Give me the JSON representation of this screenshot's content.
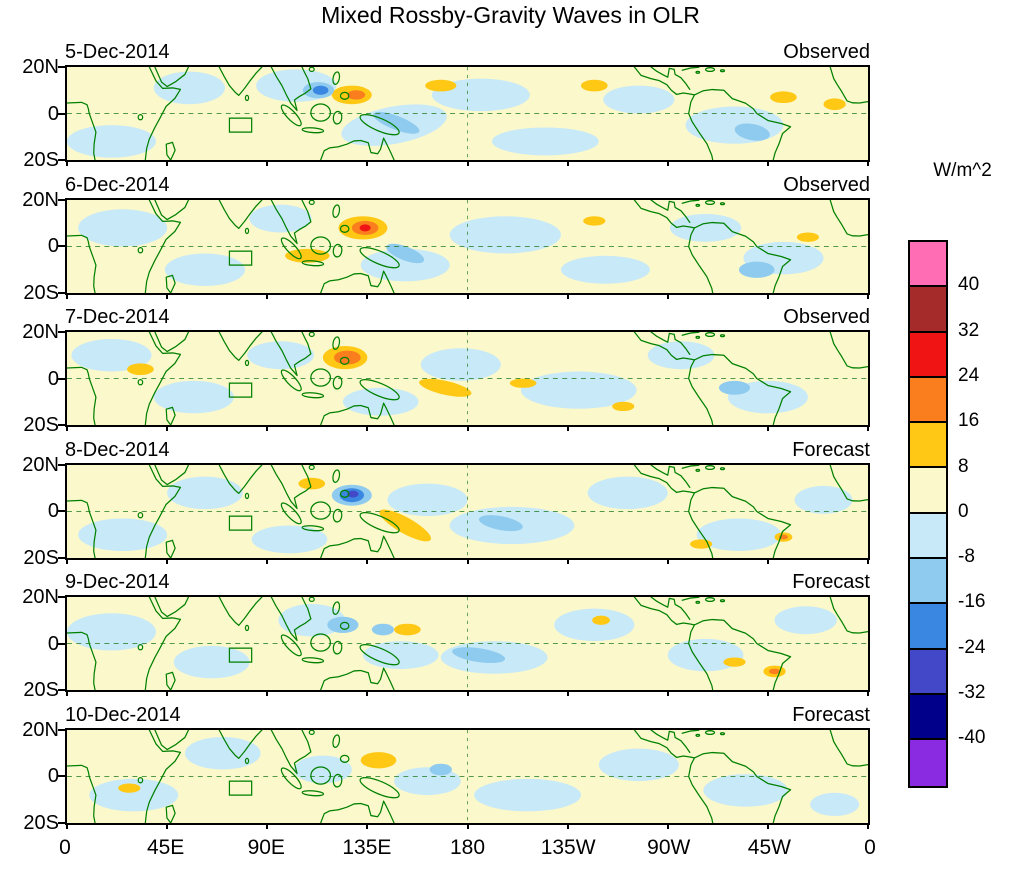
{
  "title": "Mixed Rossby-Gravity Waves in OLR",
  "chart_data": {
    "type": "heatmap",
    "title": "Mixed Rossby-Gravity Waves in OLR",
    "geo_domain": {
      "lon_range": [
        0,
        360
      ],
      "lat_range": [
        -20,
        20
      ]
    },
    "x_axis": {
      "tick_lons": [
        0,
        45,
        90,
        135,
        180,
        225,
        270,
        315,
        360
      ],
      "tick_labels": [
        "0",
        "45E",
        "90E",
        "135E",
        "180",
        "135W",
        "90W",
        "45W",
        "0"
      ]
    },
    "y_axis": {
      "tick_lats": [
        20,
        0,
        -20
      ],
      "tick_labels": [
        "20N",
        "0",
        "20S"
      ]
    },
    "colorbar": {
      "unit": "W/m^2",
      "tick_labels": [
        "40",
        "32",
        "24",
        "16",
        "8",
        "0",
        "-8",
        "-16",
        "-24",
        "-32",
        "-40"
      ],
      "cell_colors_top_to_bottom": [
        "#FF6EB4",
        "#A52A2A",
        "#F01414",
        "#FA7D1E",
        "#FFC814",
        "#FBF8CC",
        "#C8E9F7",
        "#8FCBEF",
        "#3A87E2",
        "#4348C8",
        "#00008B",
        "#8A2BE2"
      ]
    },
    "level_colors": {
      "1": "#FBF8CC",
      "2": "#FFC814",
      "3": "#FA7D1E",
      "4": "#F01414",
      "5": "#A52A2A",
      "6": "#FF6EB4",
      "-1": "#C8E9F7",
      "-2": "#8FCBEF",
      "-3": "#3A87E2",
      "-4": "#4348C8",
      "-5": "#00008B",
      "-6": "#8A2BE2"
    },
    "region_box": {
      "lon": [
        73,
        83
      ],
      "lat": [
        -8,
        -2
      ]
    },
    "anomaly_format": "[lon_deg_east, lat_deg_north, rx_deg, ry_deg, rotation_deg, level_index]",
    "panels": [
      {
        "date": "5-Dec-2014",
        "source": "Observed",
        "anomalies": [
          [
            20,
            -12,
            20,
            7,
            0,
            -1
          ],
          [
            55,
            11,
            16,
            7,
            0,
            -1
          ],
          [
            103,
            12,
            18,
            7,
            0,
            -1
          ],
          [
            147,
            -5,
            24,
            8,
            -10,
            -1
          ],
          [
            186,
            8,
            22,
            7,
            0,
            -1
          ],
          [
            215,
            -12,
            24,
            6,
            0,
            -1
          ],
          [
            257,
            6,
            16,
            6,
            0,
            -1
          ],
          [
            300,
            -5,
            22,
            8,
            0,
            -1
          ],
          [
            168,
            12,
            7,
            2.5,
            0,
            2
          ],
          [
            237,
            12,
            6,
            2.5,
            0,
            2
          ],
          [
            322,
            7,
            6,
            2.5,
            0,
            2
          ],
          [
            345,
            4,
            5,
            2.5,
            0,
            2
          ],
          [
            128,
            8,
            9,
            4,
            0,
            2
          ],
          [
            130,
            8,
            4,
            2,
            0,
            3
          ],
          [
            113,
            10,
            7,
            3.5,
            0,
            -2
          ],
          [
            114,
            10,
            3.5,
            2,
            0,
            -3
          ],
          [
            148,
            -4,
            11,
            3,
            20,
            -2
          ],
          [
            308,
            -8,
            8,
            3.5,
            10,
            -2
          ]
        ]
      },
      {
        "date": "6-Dec-2014",
        "source": "Observed",
        "anomalies": [
          [
            25,
            8,
            20,
            8,
            0,
            -1
          ],
          [
            62,
            -10,
            18,
            7,
            0,
            -1
          ],
          [
            96,
            12,
            14,
            6,
            0,
            -1
          ],
          [
            152,
            -8,
            20,
            7,
            0,
            -1
          ],
          [
            197,
            5,
            25,
            8,
            0,
            -1
          ],
          [
            242,
            -10,
            20,
            6,
            0,
            -1
          ],
          [
            287,
            8,
            16,
            6,
            0,
            -1
          ],
          [
            322,
            -5,
            18,
            7,
            0,
            -1
          ],
          [
            108,
            -4,
            10,
            3,
            0,
            2
          ],
          [
            237,
            11,
            5,
            2,
            0,
            2
          ],
          [
            333,
            4,
            5,
            2,
            0,
            2
          ],
          [
            133,
            8,
            11,
            5,
            0,
            2
          ],
          [
            134,
            8,
            6,
            3,
            0,
            3
          ],
          [
            134,
            8,
            2.5,
            1.5,
            0,
            4
          ],
          [
            152,
            -3,
            9,
            3,
            20,
            -2
          ],
          [
            310,
            -10,
            8,
            3.5,
            0,
            -2
          ]
        ]
      },
      {
        "date": "7-Dec-2014",
        "source": "Observed",
        "anomalies": [
          [
            20,
            10,
            18,
            7,
            0,
            -1
          ],
          [
            57,
            -8,
            18,
            7,
            0,
            -1
          ],
          [
            96,
            10,
            15,
            6,
            0,
            -1
          ],
          [
            141,
            -10,
            17,
            6,
            0,
            -1
          ],
          [
            177,
            6,
            18,
            7,
            0,
            -1
          ],
          [
            230,
            -5,
            26,
            8,
            0,
            -1
          ],
          [
            276,
            10,
            15,
            6,
            0,
            -1
          ],
          [
            315,
            -8,
            18,
            7,
            0,
            -1
          ],
          [
            33,
            4,
            6,
            2.5,
            0,
            2
          ],
          [
            170,
            -4,
            12,
            3,
            12,
            2
          ],
          [
            205,
            -2,
            6,
            2,
            0,
            2
          ],
          [
            250,
            -12,
            5,
            2,
            0,
            2
          ],
          [
            125,
            9,
            10,
            5,
            0,
            2
          ],
          [
            126,
            9,
            6,
            3,
            0,
            3
          ],
          [
            300,
            -4,
            7,
            3,
            0,
            -2
          ]
        ]
      },
      {
        "date": "8-Dec-2014",
        "source": "Forecast",
        "anomalies": [
          [
            25,
            -10,
            20,
            7,
            0,
            -1
          ],
          [
            62,
            8,
            17,
            7,
            0,
            -1
          ],
          [
            100,
            -12,
            17,
            6,
            0,
            -1
          ],
          [
            162,
            5,
            18,
            7,
            0,
            -1
          ],
          [
            200,
            -6,
            28,
            8,
            0,
            -1
          ],
          [
            252,
            8,
            18,
            7,
            0,
            -1
          ],
          [
            302,
            -10,
            19,
            7,
            0,
            -1
          ],
          [
            340,
            5,
            13,
            6,
            0,
            -1
          ],
          [
            110,
            12,
            6,
            2.5,
            0,
            2
          ],
          [
            152,
            -6,
            13,
            3.5,
            28,
            2
          ],
          [
            285,
            -14,
            5,
            2,
            0,
            2
          ],
          [
            128,
            7,
            9,
            4.5,
            0,
            -2
          ],
          [
            128,
            7,
            5.5,
            3,
            0,
            -3
          ],
          [
            128.5,
            7.5,
            2.5,
            1.5,
            0,
            -4
          ],
          [
            195,
            -5,
            10,
            3,
            10,
            -2
          ],
          [
            322,
            -11,
            4,
            2,
            0,
            2
          ],
          [
            322,
            -11,
            2,
            1,
            0,
            3
          ]
        ]
      },
      {
        "date": "9-Dec-2014",
        "source": "Forecast",
        "anomalies": [
          [
            20,
            5,
            20,
            8,
            0,
            -1
          ],
          [
            65,
            -8,
            17,
            7,
            0,
            -1
          ],
          [
            110,
            10,
            15,
            7,
            0,
            -1
          ],
          [
            150,
            -5,
            17,
            6,
            0,
            -1
          ],
          [
            192,
            -6,
            24,
            7,
            0,
            -1
          ],
          [
            237,
            8,
            18,
            7,
            0,
            -1
          ],
          [
            287,
            -5,
            17,
            7,
            0,
            -1
          ],
          [
            332,
            10,
            14,
            6,
            0,
            -1
          ],
          [
            153,
            6,
            6,
            2.5,
            0,
            2
          ],
          [
            240,
            10,
            4,
            2,
            0,
            2
          ],
          [
            300,
            -8,
            5,
            2,
            0,
            2
          ],
          [
            124,
            8,
            7,
            3.5,
            0,
            -2
          ],
          [
            142,
            6,
            5,
            2.5,
            0,
            -2
          ],
          [
            185,
            -5,
            12,
            3,
            8,
            -2
          ],
          [
            318,
            -12,
            5,
            2.5,
            0,
            2
          ],
          [
            318,
            -12,
            2.5,
            1.2,
            0,
            3
          ]
        ]
      },
      {
        "date": "10-Dec-2014",
        "source": "Forecast",
        "anomalies": [
          [
            30,
            -8,
            20,
            7,
            0,
            -1
          ],
          [
            70,
            10,
            17,
            7,
            0,
            -1
          ],
          [
            115,
            3,
            13,
            6,
            0,
            -1
          ],
          [
            162,
            -2,
            15,
            6,
            0,
            -1
          ],
          [
            207,
            -8,
            24,
            7,
            0,
            -1
          ],
          [
            257,
            5,
            18,
            7,
            0,
            -1
          ],
          [
            305,
            -6,
            19,
            7,
            0,
            -1
          ],
          [
            345,
            -12,
            11,
            5,
            0,
            -1
          ],
          [
            28,
            -5,
            5,
            2,
            0,
            2
          ],
          [
            140,
            7,
            8,
            3.5,
            0,
            2
          ],
          [
            168,
            3,
            5,
            2.5,
            0,
            -2
          ]
        ]
      }
    ]
  }
}
